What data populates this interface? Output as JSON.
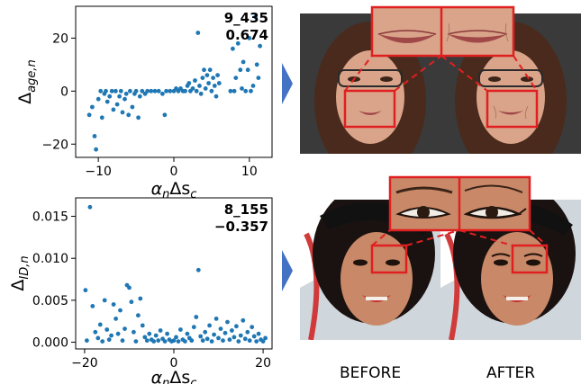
{
  "colors": {
    "point": "#1f77b4",
    "arrow": "#4472c4",
    "highlight": "#e02020",
    "bg_face1": "#3a3a3a",
    "skin1": "#d9a48a",
    "hair1": "#4a2a1c",
    "bg_face2": "#cfd6dc",
    "skin2": "#c98868",
    "hair2": "#1a1210"
  },
  "chart_data": [
    {
      "type": "scatter",
      "id": "age",
      "ylabel": "Δage,n",
      "xlabel": "αnΔsc",
      "annotation_line1": "9_435",
      "annotation_line2": "0.674",
      "xlim": [
        -13,
        13
      ],
      "ylim": [
        -25,
        32
      ],
      "xticks": [
        -10,
        0,
        10
      ],
      "xtick_labels": [
        "−10",
        "0",
        "10"
      ],
      "yticks": [
        -20,
        0,
        20
      ],
      "ytick_labels": [
        "−20",
        "0",
        "20"
      ],
      "points": [
        [
          -11.2,
          -9
        ],
        [
          -10.8,
          -6
        ],
        [
          -10.5,
          -17
        ],
        [
          -10.3,
          -22
        ],
        [
          -10.0,
          -3
        ],
        [
          -9.7,
          0
        ],
        [
          -9.5,
          -10
        ],
        [
          -9.2,
          -1
        ],
        [
          -9.0,
          0
        ],
        [
          -8.8,
          -4
        ],
        [
          -8.5,
          -2
        ],
        [
          -8.2,
          0
        ],
        [
          -8.0,
          -7
        ],
        [
          -7.7,
          0
        ],
        [
          -7.5,
          -5
        ],
        [
          -7.2,
          -2
        ],
        [
          -7.0,
          0
        ],
        [
          -6.8,
          -8
        ],
        [
          -6.5,
          -3
        ],
        [
          -6.3,
          -1
        ],
        [
          -6.0,
          -9
        ],
        [
          -5.8,
          0
        ],
        [
          -5.5,
          -6
        ],
        [
          -5.2,
          -1
        ],
        [
          -5.0,
          0
        ],
        [
          -4.7,
          -10
        ],
        [
          -4.5,
          -2
        ],
        [
          -4.2,
          0
        ],
        [
          -3.8,
          -1
        ],
        [
          -3.5,
          0
        ],
        [
          -3.0,
          0
        ],
        [
          -2.5,
          0
        ],
        [
          -2.0,
          0
        ],
        [
          -1.5,
          -1
        ],
        [
          -1.2,
          -9
        ],
        [
          -1.0,
          0
        ],
        [
          -0.5,
          0
        ],
        [
          0.0,
          0
        ],
        [
          0.3,
          1
        ],
        [
          0.6,
          0
        ],
        [
          0.9,
          1
        ],
        [
          1.2,
          0
        ],
        [
          1.5,
          0
        ],
        [
          1.8,
          2
        ],
        [
          2.0,
          3
        ],
        [
          2.2,
          0
        ],
        [
          2.5,
          1
        ],
        [
          2.8,
          4
        ],
        [
          3.0,
          0
        ],
        [
          3.2,
          22
        ],
        [
          3.4,
          2
        ],
        [
          3.6,
          -1
        ],
        [
          3.8,
          5
        ],
        [
          4.0,
          8
        ],
        [
          4.2,
          1
        ],
        [
          4.4,
          6
        ],
        [
          4.6,
          3
        ],
        [
          4.8,
          8
        ],
        [
          5.0,
          0
        ],
        [
          5.2,
          5
        ],
        [
          5.4,
          2
        ],
        [
          5.6,
          -2
        ],
        [
          5.8,
          6
        ],
        [
          6.0,
          3
        ],
        [
          7.5,
          0
        ],
        [
          7.8,
          16
        ],
        [
          8.0,
          0
        ],
        [
          8.2,
          5
        ],
        [
          8.5,
          18
        ],
        [
          8.8,
          8
        ],
        [
          9.0,
          1
        ],
        [
          9.2,
          11
        ],
        [
          9.5,
          0
        ],
        [
          9.8,
          8
        ],
        [
          10.0,
          20
        ],
        [
          10.2,
          0
        ],
        [
          10.5,
          2
        ],
        [
          10.8,
          28
        ],
        [
          11.0,
          10
        ],
        [
          11.2,
          5
        ],
        [
          11.4,
          17
        ]
      ]
    },
    {
      "type": "scatter",
      "id": "identity",
      "ylabel": "ΔID,n",
      "xlabel": "αnΔsc",
      "annotation_line1": "8_155",
      "annotation_line2": "−0.357",
      "xlim": [
        -22,
        22
      ],
      "ylim": [
        -0.0008,
        0.0172
      ],
      "xticks": [
        -20,
        0,
        20
      ],
      "xtick_labels": [
        "−20",
        "0",
        "20"
      ],
      "yticks": [
        0.0,
        0.005,
        0.01,
        0.015
      ],
      "ytick_labels": [
        "0.000",
        "0.005",
        "0.010",
        "0.015"
      ],
      "points": [
        [
          -19.8,
          0.0062
        ],
        [
          -19.5,
          0.0002
        ],
        [
          -18.8,
          0.0161
        ],
        [
          -18.2,
          0.0043
        ],
        [
          -17.6,
          0.0012
        ],
        [
          -17.0,
          0.0005
        ],
        [
          -16.5,
          0.0021
        ],
        [
          -16.0,
          0.0001
        ],
        [
          -15.5,
          0.005
        ],
        [
          -15.0,
          0.0015
        ],
        [
          -14.5,
          0.0003
        ],
        [
          -14.0,
          0.0008
        ],
        [
          -13.5,
          0.0045
        ],
        [
          -13.0,
          0.0028
        ],
        [
          -12.5,
          0.001
        ],
        [
          -12.0,
          0.0038
        ],
        [
          -11.5,
          0.0002
        ],
        [
          -11.0,
          0.0016
        ],
        [
          -10.5,
          0.0068
        ],
        [
          -10.0,
          0.0065
        ],
        [
          -9.5,
          0.0048
        ],
        [
          -9.0,
          0.0012
        ],
        [
          -8.5,
          0.0001
        ],
        [
          -8.0,
          0.0032
        ],
        [
          -7.5,
          0.0052
        ],
        [
          -7.0,
          0.002
        ],
        [
          -6.5,
          0.0006
        ],
        [
          -6.0,
          0.0002
        ],
        [
          -5.5,
          0.001
        ],
        [
          -5.0,
          0.0003
        ],
        [
          -4.5,
          0.0001
        ],
        [
          -4.0,
          0.0008
        ],
        [
          -3.5,
          0.0002
        ],
        [
          -3.0,
          0.0014
        ],
        [
          -2.5,
          0.0004
        ],
        [
          -2.0,
          0.0001
        ],
        [
          -1.5,
          0.001
        ],
        [
          -1.0,
          0.0003
        ],
        [
          -0.5,
          0.0001
        ],
        [
          0.0,
          0.0002
        ],
        [
          0.5,
          0.0006
        ],
        [
          1.0,
          0.0001
        ],
        [
          1.5,
          0.0015
        ],
        [
          2.0,
          0.0003
        ],
        [
          2.5,
          0.0001
        ],
        [
          3.0,
          0.001
        ],
        [
          3.5,
          0.0005
        ],
        [
          4.0,
          0.0002
        ],
        [
          4.5,
          0.0018
        ],
        [
          5.0,
          0.003
        ],
        [
          5.5,
          0.0086
        ],
        [
          6.0,
          0.0007
        ],
        [
          6.5,
          0.0002
        ],
        [
          7.0,
          0.0012
        ],
        [
          7.5,
          0.0004
        ],
        [
          8.0,
          0.002
        ],
        [
          8.5,
          0.0001
        ],
        [
          9.0,
          0.0009
        ],
        [
          9.5,
          0.0028
        ],
        [
          10.0,
          0.0005
        ],
        [
          10.5,
          0.0016
        ],
        [
          11.0,
          0.0002
        ],
        [
          11.5,
          0.0011
        ],
        [
          12.0,
          0.0024
        ],
        [
          12.5,
          0.0003
        ],
        [
          13.0,
          0.0014
        ],
        [
          13.5,
          0.0006
        ],
        [
          14.0,
          0.0019
        ],
        [
          14.5,
          0.0001
        ],
        [
          15.0,
          0.0008
        ],
        [
          15.5,
          0.0026
        ],
        [
          16.0,
          0.0004
        ],
        [
          16.5,
          0.0012
        ],
        [
          17.0,
          0.0002
        ],
        [
          17.5,
          0.0018
        ],
        [
          18.0,
          0.0007
        ],
        [
          18.5,
          0.0001
        ],
        [
          19.0,
          0.001
        ],
        [
          19.5,
          0.0003
        ],
        [
          20.0,
          0.0001
        ],
        [
          20.5,
          0.0005
        ]
      ]
    }
  ],
  "labels": {
    "before": "BEFORE",
    "after": "AFTER"
  },
  "figures": [
    {
      "name": "age-edit-example",
      "zoom_region": "mouth"
    },
    {
      "name": "identity-edit-example",
      "zoom_region": "eye"
    }
  ]
}
